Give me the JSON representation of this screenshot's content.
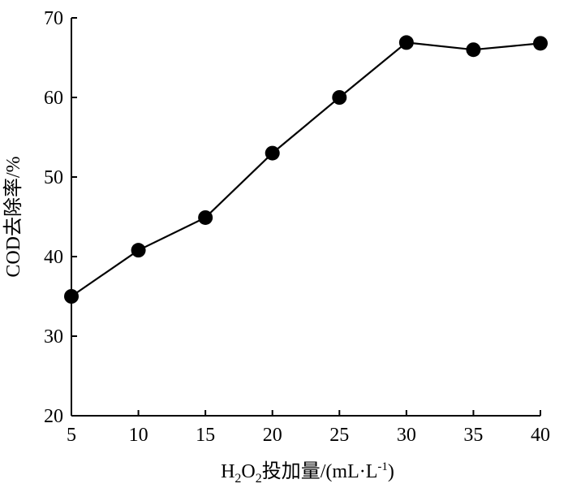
{
  "chart_data": {
    "type": "line",
    "title": "",
    "xlabel": "H₂O₂投加量/(mL·L⁻¹)",
    "xlabel_parts": [
      "H",
      "2",
      "O",
      "2",
      "投加量/(mL·L",
      "-1",
      ")"
    ],
    "ylabel": "COD去除率/%",
    "x": [
      5,
      10,
      15,
      20,
      25,
      30,
      35,
      40
    ],
    "series": [
      {
        "values": [
          35,
          40.8,
          44.9,
          53,
          60,
          66.9,
          66,
          66.8
        ],
        "color": "#000000",
        "marker": "filled-circle"
      }
    ],
    "xlim": [
      5,
      40
    ],
    "ylim": [
      20,
      70
    ],
    "xticks": [
      "5",
      "10",
      "15",
      "20",
      "25",
      "30",
      "35",
      "40"
    ],
    "yticks": [
      "20",
      "30",
      "40",
      "50",
      "60",
      "70"
    ],
    "grid": false,
    "legend": "none"
  }
}
